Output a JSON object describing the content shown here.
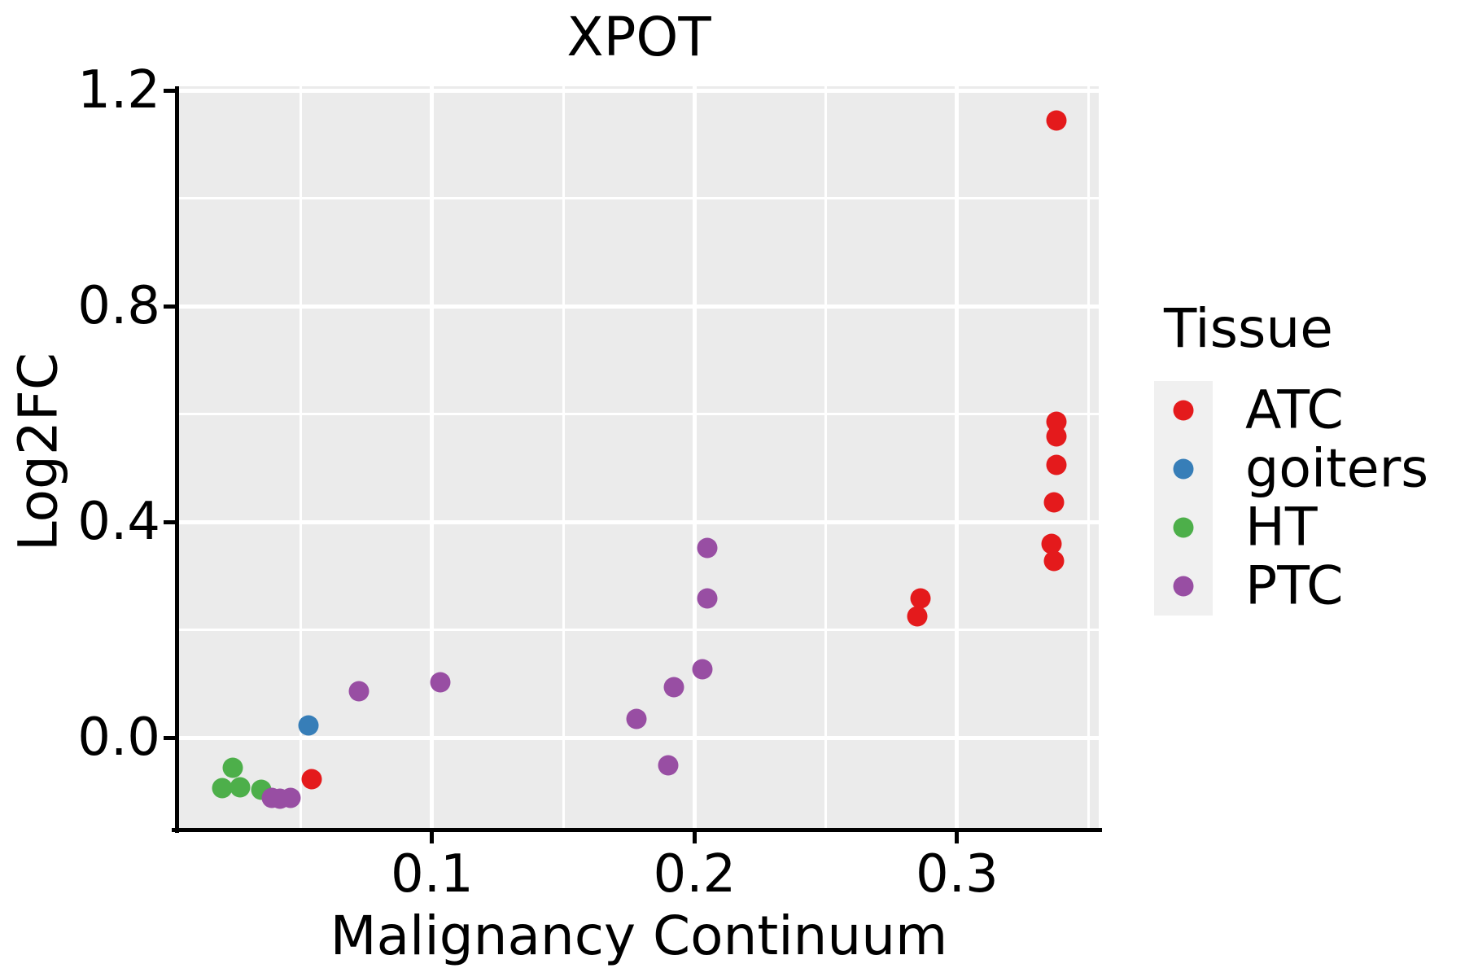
{
  "title": "XPOT",
  "panel": {
    "background_color": "#ebebeb",
    "gridline_color": "#ffffff",
    "axis_color": "#000000",
    "legend_key_color": "#f0f0f0"
  },
  "x_axis": {
    "label": "Malignancy Continuum",
    "major_ticks": [
      0.1,
      0.2,
      0.3
    ],
    "tick_labels": [
      "0.1",
      "0.2",
      "0.3"
    ],
    "minor_gridlines": [
      0.05,
      0.15,
      0.25,
      0.35
    ]
  },
  "y_axis": {
    "label": "Log2FC",
    "major_ticks": [
      0.0,
      0.4,
      0.8,
      1.2
    ],
    "tick_labels": [
      "0.0",
      "0.4",
      "0.8",
      "1.2"
    ],
    "minor_gridlines": [
      0.2,
      0.6,
      1.0
    ]
  },
  "legend": {
    "title": "Tissue",
    "entries": [
      {
        "label": "ATC",
        "color": "#e41a1c"
      },
      {
        "label": "goiters",
        "color": "#377eb8"
      },
      {
        "label": "HT",
        "color": "#4daf4a"
      },
      {
        "label": "PTC",
        "color": "#984ea3"
      }
    ]
  },
  "chart_data": {
    "type": "scatter",
    "title": "XPOT",
    "xlabel": "Malignancy Continuum",
    "ylabel": "Log2FC",
    "xlim": [
      0.004,
      0.354
    ],
    "ylim": [
      -0.17,
      1.21
    ],
    "grid": true,
    "legend_title": "Tissue",
    "legend_position": "right",
    "series": [
      {
        "name": "ATC",
        "color": "#e41a1c",
        "points": [
          [
            0.338,
            1.145
          ],
          [
            0.338,
            0.586
          ],
          [
            0.338,
            0.558
          ],
          [
            0.338,
            0.506
          ],
          [
            0.337,
            0.436
          ],
          [
            0.336,
            0.359
          ],
          [
            0.337,
            0.327
          ],
          [
            0.286,
            0.258
          ],
          [
            0.285,
            0.225
          ],
          [
            0.054,
            -0.077
          ]
        ]
      },
      {
        "name": "goiters",
        "color": "#377eb8",
        "points": [
          [
            0.053,
            0.022
          ]
        ]
      },
      {
        "name": "HT",
        "color": "#4daf4a",
        "points": [
          [
            0.024,
            -0.056
          ],
          [
            0.02,
            -0.094
          ],
          [
            0.027,
            -0.092
          ],
          [
            0.035,
            -0.097
          ]
        ]
      },
      {
        "name": "PTC",
        "color": "#984ea3",
        "points": [
          [
            0.039,
            -0.111
          ],
          [
            0.042,
            -0.113
          ],
          [
            0.046,
            -0.112
          ],
          [
            0.072,
            0.086
          ],
          [
            0.103,
            0.103
          ],
          [
            0.178,
            0.035
          ],
          [
            0.19,
            -0.051
          ],
          [
            0.192,
            0.094
          ],
          [
            0.203,
            0.127
          ],
          [
            0.205,
            0.258
          ],
          [
            0.205,
            0.352
          ]
        ]
      }
    ]
  }
}
